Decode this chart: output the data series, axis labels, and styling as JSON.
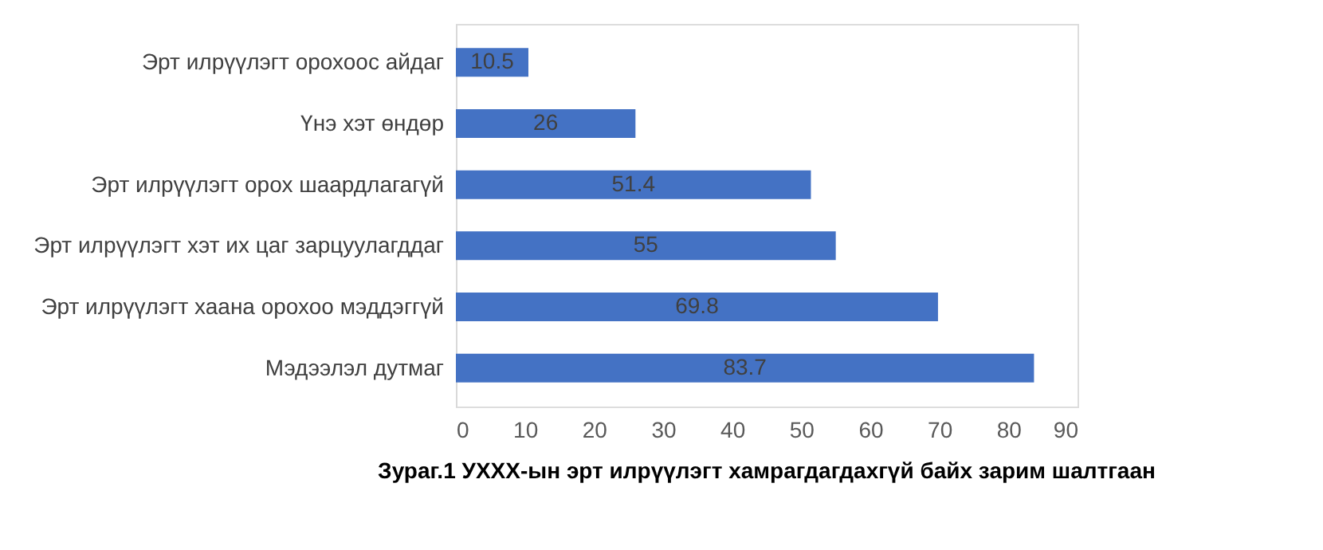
{
  "chart_data": {
    "type": "bar",
    "orientation": "horizontal",
    "categories": [
      "Эрт илрүүлэгт орохоос айдаг",
      "Үнэ хэт өндөр",
      "Эрт илрүүлэгт орох шаардлагагүй",
      "Эрт илрүүлэгт хэт их цаг зарцуулагддаг",
      "Эрт илрүүлэгт хаана орохоо мэддэггүй",
      "Мэдээлэл дутмаг"
    ],
    "values": [
      10.5,
      26,
      51.4,
      55,
      69.8,
      83.7
    ],
    "color": "#4472c4",
    "xlim": [
      0,
      90
    ],
    "xticks": [
      0,
      10,
      20,
      30,
      40,
      50,
      60,
      70,
      80,
      90
    ],
    "data_labels": true,
    "grid": false,
    "annotations": [
      "Зураг.1 УХХХ-ын эрт илрүүлэгт хамрагдагдахгүй байх зарим шалтгаан"
    ]
  }
}
